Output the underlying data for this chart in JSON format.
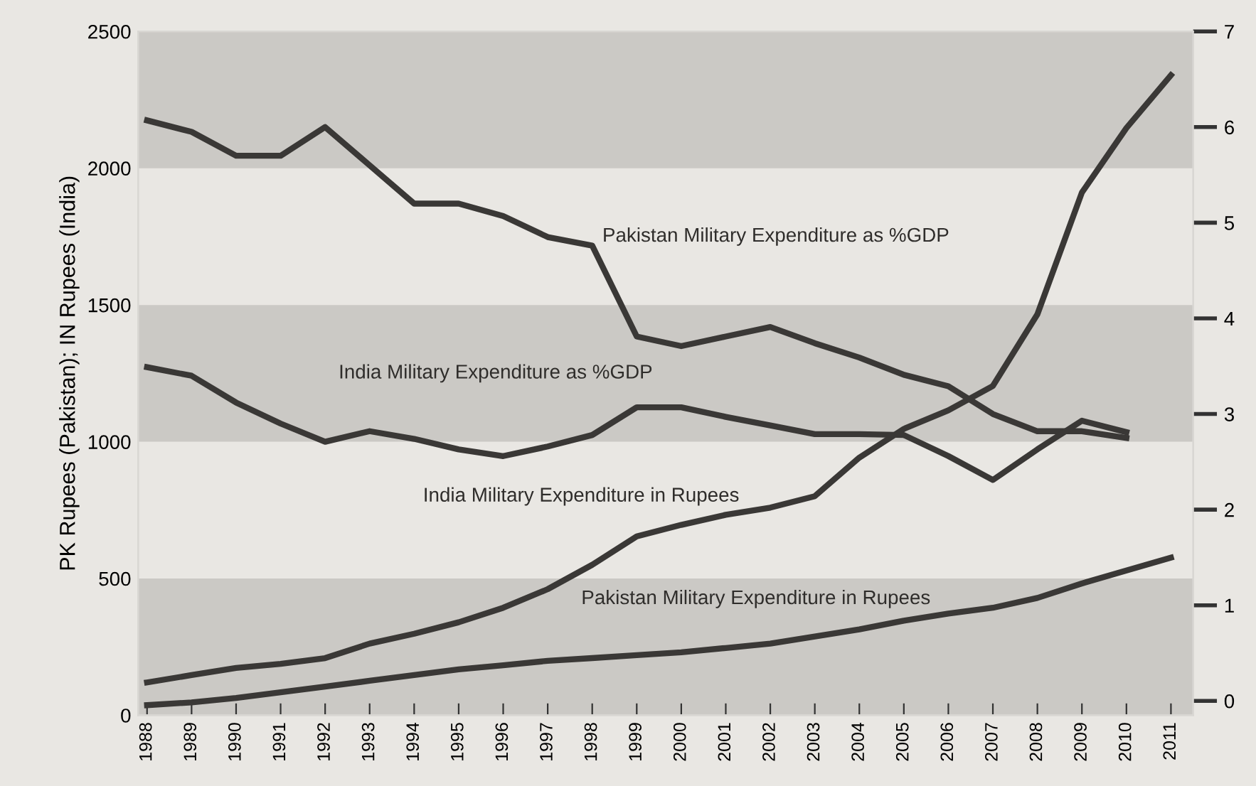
{
  "chart_data": {
    "type": "line",
    "ylabel": "PK Rupees (Pakistan); IN Rupees (India)",
    "categories": [
      "1988",
      "1989",
      "1990",
      "1991",
      "1992",
      "1993",
      "1994",
      "1995",
      "1996",
      "1997",
      "1998",
      "1999",
      "2000",
      "2001",
      "2002",
      "2003",
      "2004",
      "2005",
      "2006",
      "2007",
      "2008",
      "2009",
      "2010",
      "2011"
    ],
    "series": [
      {
        "name": "Pakistan Military Expenditure as %GDP",
        "color": "#3a3836",
        "axis": "y2",
        "values": [
          6.07,
          5.95,
          5.7,
          5.7,
          6.0,
          5.6,
          5.2,
          5.2,
          5.07,
          4.85,
          4.76,
          3.81,
          3.71,
          3.81,
          3.91,
          3.74,
          3.59,
          3.41,
          3.29,
          3.0,
          2.82,
          2.82,
          2.75,
          null
        ]
      },
      {
        "name": "India Military Expenditure as %GDP",
        "color": "#3a3836",
        "axis": "y2",
        "values": [
          3.49,
          3.4,
          3.12,
          2.9,
          2.71,
          2.82,
          2.74,
          2.63,
          2.56,
          2.66,
          2.78,
          3.07,
          3.07,
          2.97,
          2.88,
          2.79,
          2.79,
          2.78,
          2.56,
          2.31,
          2.63,
          2.93,
          2.81,
          null
        ]
      },
      {
        "name": "India Military Expenditure in Rupees",
        "color": "#3a3836",
        "axis": "y",
        "values": [
          120,
          147,
          173,
          188,
          209,
          262,
          298,
          340,
          393,
          461,
          550,
          654,
          696,
          733,
          759,
          801,
          942,
          1047,
          1115,
          1204,
          1466,
          1911,
          2147,
          2340
        ]
      },
      {
        "name": "Pakistan Military Expenditure in Rupees",
        "color": "#3a3836",
        "axis": "y",
        "values": [
          37,
          47,
          63,
          84,
          105,
          126,
          147,
          168,
          183,
          199,
          209,
          220,
          230,
          246,
          262,
          288,
          314,
          346,
          372,
          393,
          429,
          482,
          529,
          576
        ]
      }
    ],
    "ylim": [
      0,
      2500
    ],
    "yticks": [
      0,
      500,
      1000,
      1500,
      2000,
      2500
    ],
    "y2lim": [
      -0.15,
      7
    ],
    "y2ticks": [
      0,
      1,
      2,
      3,
      4,
      5,
      6,
      7
    ],
    "bands": [
      {
        "axis": "y",
        "from": 0,
        "to": 500,
        "color": "#cbc9c5"
      },
      {
        "axis": "y",
        "from": 1000,
        "to": 1500,
        "color": "#cbc9c5"
      },
      {
        "axis": "y",
        "from": 2000,
        "to": 2500,
        "color": "#cbc9c5"
      }
    ],
    "grid": false,
    "legend": false,
    "line_style": "solid",
    "marker": "none"
  }
}
